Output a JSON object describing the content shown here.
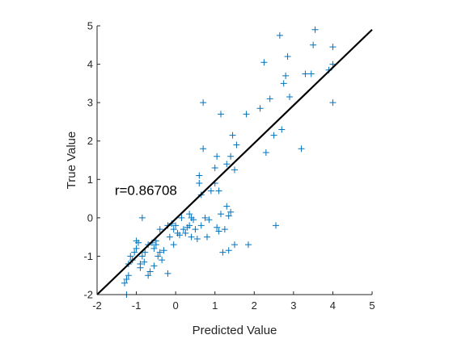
{
  "chart_data": {
    "type": "scatter",
    "xlabel": "Predicted Value",
    "ylabel": "True Value",
    "xlim": [
      -2,
      5
    ],
    "ylim": [
      -2,
      5
    ],
    "xticks": [
      -2,
      -1,
      0,
      1,
      2,
      3,
      4,
      5
    ],
    "yticks": [
      -2,
      -1,
      0,
      1,
      2,
      3,
      4,
      5
    ],
    "xtick_labels": [
      "-2",
      "-1",
      "0",
      "1",
      "2",
      "3",
      "4",
      "5"
    ],
    "ytick_labels": [
      "-2",
      "-1",
      "0",
      "1",
      "2",
      "3",
      "4",
      "5"
    ],
    "grid": false,
    "legend": "none",
    "annotation": {
      "text": "r=0.86708",
      "x": -1.55,
      "y": 0.6
    },
    "marker": "+",
    "marker_color": "#0072BD",
    "fit_line": {
      "color": "#000000",
      "points": [
        [
          -2,
          -2
        ],
        [
          5,
          4.9
        ]
      ]
    },
    "series": [
      {
        "points": [
          [
            -1.3,
            -1.7
          ],
          [
            -1.25,
            -1.6
          ],
          [
            -1.2,
            -1.5
          ],
          [
            -1.25,
            -2.0
          ],
          [
            -1.2,
            -1.2
          ],
          [
            -1.15,
            -1.0
          ],
          [
            -1.1,
            -1.1
          ],
          [
            -1.05,
            -0.9
          ],
          [
            -1.0,
            -0.6
          ],
          [
            -1.0,
            -0.8
          ],
          [
            -0.95,
            -0.65
          ],
          [
            -0.9,
            -1.2
          ],
          [
            -0.9,
            -1.3
          ],
          [
            -0.85,
            -1.0
          ],
          [
            -0.8,
            -1.15
          ],
          [
            -0.78,
            -0.9
          ],
          [
            -0.85,
            0.0
          ],
          [
            -0.7,
            -1.5
          ],
          [
            -0.7,
            -0.7
          ],
          [
            -0.65,
            -1.4
          ],
          [
            -0.6,
            -0.65
          ],
          [
            -0.55,
            -0.8
          ],
          [
            -0.55,
            -1.25
          ],
          [
            -0.5,
            -0.7
          ],
          [
            -0.5,
            -0.6
          ],
          [
            -0.45,
            -1.0
          ],
          [
            -0.4,
            -0.9
          ],
          [
            -0.4,
            -0.3
          ],
          [
            -0.35,
            -1.1
          ],
          [
            -0.3,
            -0.85
          ],
          [
            -0.2,
            -0.2
          ],
          [
            -0.2,
            -1.45
          ],
          [
            -0.15,
            -0.5
          ],
          [
            -0.1,
            -0.15
          ],
          [
            -0.05,
            -0.7
          ],
          [
            -0.05,
            -0.3
          ],
          [
            0.0,
            -0.2
          ],
          [
            0.05,
            -0.4
          ],
          [
            0.1,
            -0.45
          ],
          [
            0.15,
            0.0
          ],
          [
            0.2,
            -0.3
          ],
          [
            0.25,
            -0.4
          ],
          [
            0.3,
            -0.25
          ],
          [
            0.35,
            -0.2
          ],
          [
            0.35,
            0.1
          ],
          [
            0.4,
            -0.5
          ],
          [
            0.4,
            0.0
          ],
          [
            0.45,
            -0.05
          ],
          [
            0.5,
            -0.3
          ],
          [
            0.55,
            -0.55
          ],
          [
            0.6,
            0.9
          ],
          [
            0.6,
            1.1
          ],
          [
            0.65,
            0.6
          ],
          [
            0.65,
            -0.2
          ],
          [
            0.7,
            1.8
          ],
          [
            0.7,
            3.0
          ],
          [
            0.75,
            0.0
          ],
          [
            0.8,
            -0.5
          ],
          [
            0.85,
            -0.05
          ],
          [
            0.9,
            0.7
          ],
          [
            1.0,
            0.9
          ],
          [
            1.0,
            1.3
          ],
          [
            1.05,
            -0.25
          ],
          [
            1.05,
            1.6
          ],
          [
            1.1,
            -0.35
          ],
          [
            1.1,
            0.7
          ],
          [
            1.15,
            0.1
          ],
          [
            1.15,
            2.7
          ],
          [
            1.2,
            -0.9
          ],
          [
            1.25,
            -0.3
          ],
          [
            1.3,
            0.3
          ],
          [
            1.3,
            1.4
          ],
          [
            1.35,
            0.05
          ],
          [
            1.35,
            -0.85
          ],
          [
            1.4,
            1.6
          ],
          [
            1.4,
            0.15
          ],
          [
            1.45,
            2.15
          ],
          [
            1.5,
            -0.7
          ],
          [
            1.5,
            1.25
          ],
          [
            1.55,
            1.9
          ],
          [
            1.8,
            2.7
          ],
          [
            1.85,
            -0.7
          ],
          [
            2.15,
            2.85
          ],
          [
            2.25,
            4.05
          ],
          [
            2.3,
            1.7
          ],
          [
            2.4,
            3.1
          ],
          [
            2.5,
            2.15
          ],
          [
            2.55,
            -0.2
          ],
          [
            2.65,
            4.75
          ],
          [
            2.7,
            2.3
          ],
          [
            2.75,
            3.5
          ],
          [
            2.8,
            3.7
          ],
          [
            2.85,
            4.2
          ],
          [
            2.9,
            3.15
          ],
          [
            3.2,
            1.8
          ],
          [
            3.3,
            3.75
          ],
          [
            3.45,
            3.75
          ],
          [
            3.5,
            4.5
          ],
          [
            3.55,
            4.9
          ],
          [
            3.9,
            3.85
          ],
          [
            4.0,
            4.0
          ],
          [
            4.0,
            4.45
          ],
          [
            4.0,
            3.0
          ]
        ]
      }
    ]
  }
}
